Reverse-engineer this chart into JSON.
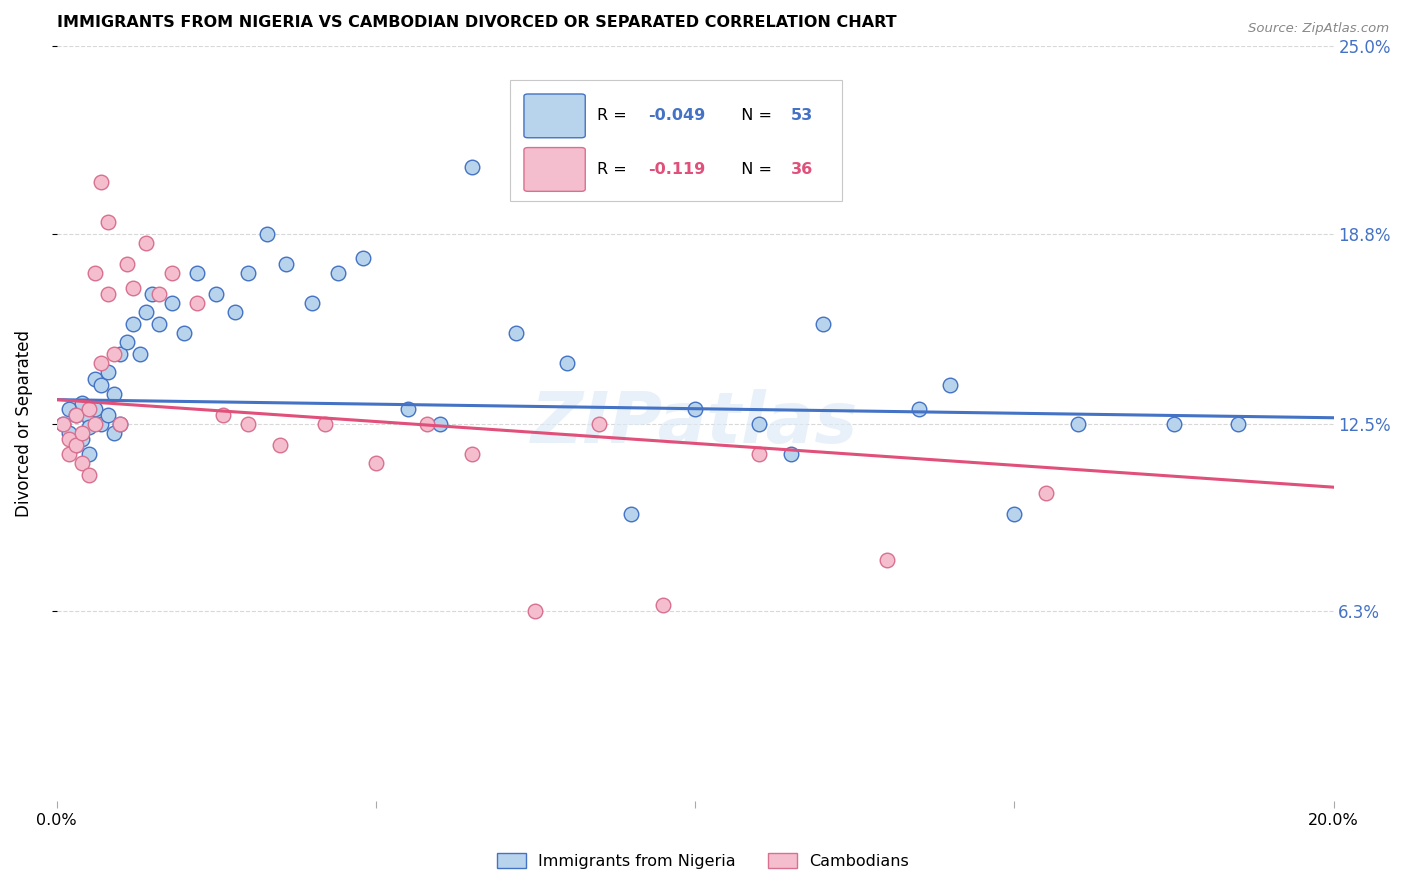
{
  "title": "IMMIGRANTS FROM NIGERIA VS CAMBODIAN DIVORCED OR SEPARATED CORRELATION CHART",
  "source": "Source: ZipAtlas.com",
  "ylabel": "Divorced or Separated",
  "legend_label1": "Immigrants from Nigeria",
  "legend_label2": "Cambodians",
  "R1": "-0.049",
  "N1": "53",
  "R2": "-0.119",
  "N2": "36",
  "x_min": 0.0,
  "x_max": 0.2,
  "y_min": 0.0,
  "y_max": 0.25,
  "y_tick_labels_right": [
    "6.3%",
    "12.5%",
    "18.8%",
    "25.0%"
  ],
  "y_tick_vals_right": [
    0.063,
    0.125,
    0.188,
    0.25
  ],
  "color_blue": "#b8d4ec",
  "color_pink": "#f5bece",
  "line_color_blue": "#4472c4",
  "line_color_pink": "#e0507a",
  "background_color": "#ffffff",
  "grid_color": "#d8d8d8",
  "nigeria_x": [
    0.001,
    0.002,
    0.002,
    0.003,
    0.003,
    0.004,
    0.004,
    0.005,
    0.005,
    0.005,
    0.006,
    0.006,
    0.007,
    0.007,
    0.008,
    0.008,
    0.009,
    0.009,
    0.01,
    0.01,
    0.011,
    0.012,
    0.013,
    0.014,
    0.015,
    0.016,
    0.018,
    0.02,
    0.022,
    0.025,
    0.028,
    0.03,
    0.033,
    0.036,
    0.04,
    0.044,
    0.048,
    0.055,
    0.06,
    0.065,
    0.072,
    0.08,
    0.09,
    0.1,
    0.11,
    0.115,
    0.12,
    0.135,
    0.14,
    0.15,
    0.16,
    0.175,
    0.185
  ],
  "nigeria_y": [
    0.125,
    0.122,
    0.13,
    0.128,
    0.118,
    0.132,
    0.12,
    0.127,
    0.115,
    0.124,
    0.14,
    0.13,
    0.138,
    0.125,
    0.142,
    0.128,
    0.135,
    0.122,
    0.148,
    0.125,
    0.152,
    0.158,
    0.148,
    0.162,
    0.168,
    0.158,
    0.165,
    0.155,
    0.175,
    0.168,
    0.162,
    0.175,
    0.188,
    0.178,
    0.165,
    0.175,
    0.18,
    0.13,
    0.125,
    0.21,
    0.155,
    0.145,
    0.095,
    0.13,
    0.125,
    0.115,
    0.158,
    0.13,
    0.138,
    0.095,
    0.125,
    0.125,
    0.125
  ],
  "cambodian_x": [
    0.001,
    0.002,
    0.002,
    0.003,
    0.003,
    0.004,
    0.004,
    0.005,
    0.005,
    0.006,
    0.006,
    0.007,
    0.007,
    0.008,
    0.008,
    0.009,
    0.01,
    0.011,
    0.012,
    0.014,
    0.016,
    0.018,
    0.022,
    0.026,
    0.03,
    0.035,
    0.042,
    0.05,
    0.058,
    0.065,
    0.075,
    0.085,
    0.095,
    0.11,
    0.13,
    0.155
  ],
  "cambodian_y": [
    0.125,
    0.12,
    0.115,
    0.128,
    0.118,
    0.112,
    0.122,
    0.108,
    0.13,
    0.125,
    0.175,
    0.205,
    0.145,
    0.192,
    0.168,
    0.148,
    0.125,
    0.178,
    0.17,
    0.185,
    0.168,
    0.175,
    0.165,
    0.128,
    0.125,
    0.118,
    0.125,
    0.112,
    0.125,
    0.115,
    0.063,
    0.125,
    0.065,
    0.115,
    0.08,
    0.102
  ],
  "line1_start_y": 0.133,
  "line1_end_y": 0.127,
  "line2_start_y": 0.133,
  "line2_end_y": 0.104
}
